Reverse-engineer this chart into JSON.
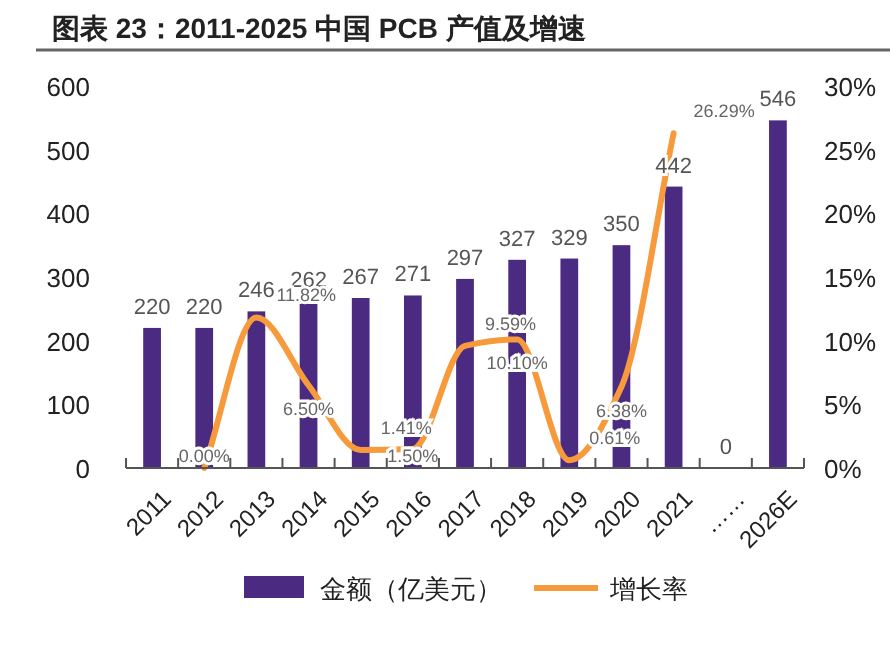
{
  "chart_data": {
    "type": "bar",
    "title": "图表 23：2011-2025 中国 PCB 产值及增速",
    "categories": [
      "2011",
      "2012",
      "2013",
      "2014",
      "2015",
      "2016",
      "2017",
      "2018",
      "2019",
      "2020",
      "2021",
      "……",
      "2026E"
    ],
    "series": [
      {
        "name": "金额（亿美元）",
        "color": "#4b2a82",
        "values": [
          220,
          220,
          246,
          262,
          267,
          271,
          297,
          327,
          329,
          350,
          442,
          0,
          546
        ]
      },
      {
        "name": "增长率",
        "type": "line",
        "axis": "y2",
        "color": "#f79a3c",
        "values": [
          null,
          0.0,
          11.82,
          6.5,
          1.41,
          1.5,
          9.59,
          10.1,
          0.61,
          6.38,
          26.29,
          null,
          null
        ],
        "value_labels": [
          null,
          "0.00%",
          "11.82%",
          "6.50%",
          "1.41%",
          "1.50%",
          "9.59%",
          "10.10%",
          "0.61%",
          "6.38%",
          "26.29%",
          null,
          null
        ]
      }
    ],
    "data_labels": true,
    "ylim": [
      0,
      600
    ],
    "yticks": [
      0,
      100,
      200,
      300,
      400,
      500,
      600
    ],
    "y2lim": [
      0,
      30
    ],
    "y2ticks": [
      {
        "value": 0,
        "label": "0%"
      },
      {
        "value": 5,
        "label": "5%"
      },
      {
        "value": 10,
        "label": "10%"
      },
      {
        "value": 15,
        "label": "15%"
      },
      {
        "value": 20,
        "label": "20%"
      },
      {
        "value": 25,
        "label": "25%"
      },
      {
        "value": 30,
        "label": "30%"
      }
    ],
    "grid": false,
    "legend": "bottom",
    "marker": "none",
    "line_style": "solid"
  }
}
